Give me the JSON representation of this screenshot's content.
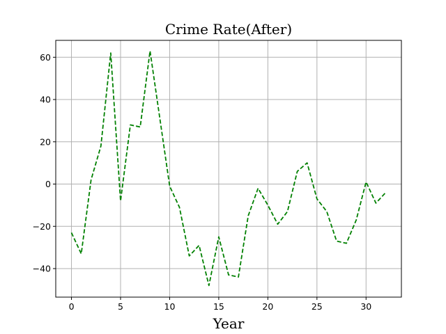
{
  "chart_data": {
    "type": "line",
    "title": "Crime Rate(After)",
    "xlabel": "Year",
    "ylabel": "",
    "xlim": [
      -1.6,
      33.6
    ],
    "ylim": [
      -53.5,
      68
    ],
    "xticks": [
      0,
      5,
      10,
      15,
      20,
      25,
      30
    ],
    "yticks": [
      -40,
      -20,
      0,
      20,
      40,
      60
    ],
    "grid": true,
    "series": [
      {
        "color": "#008000",
        "linestyle": "dashed",
        "x": [
          0,
          1,
          2,
          3,
          4,
          5,
          6,
          7,
          8,
          9,
          10,
          11,
          12,
          13,
          14,
          15,
          16,
          17,
          18,
          19,
          20,
          21,
          22,
          23,
          24,
          25,
          26,
          27,
          28,
          29,
          30,
          31,
          32
        ],
        "values": [
          -23,
          -33,
          2,
          18,
          62,
          -8,
          28,
          27,
          63,
          31,
          -1,
          -11,
          -34,
          -29,
          -48,
          -25,
          -43,
          -44,
          -15,
          -2,
          -10,
          -19,
          -13,
          6,
          10,
          -7,
          -13,
          -27,
          -28,
          -17,
          1,
          -9,
          -4
        ]
      }
    ]
  }
}
